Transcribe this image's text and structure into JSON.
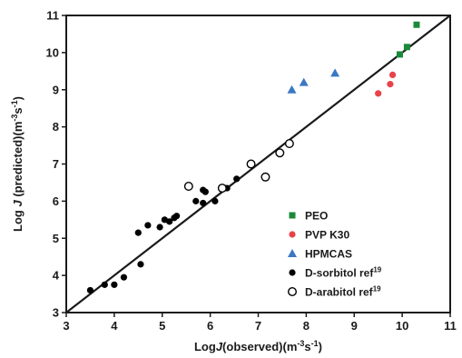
{
  "chart_data": {
    "type": "scatter",
    "xlim": [
      3,
      11
    ],
    "ylim": [
      3,
      11
    ],
    "x_ticks": [
      3,
      4,
      5,
      6,
      7,
      8,
      9,
      10,
      11
    ],
    "y_ticks": [
      3,
      4,
      5,
      6,
      7,
      8,
      9,
      10,
      11
    ],
    "x_tick_labels": [
      "3",
      "4",
      "5",
      "6",
      "7",
      "8",
      "9",
      "10",
      "11"
    ],
    "y_tick_labels": [
      "3",
      "4",
      "5",
      "6",
      "7",
      "8",
      "9",
      "10",
      "11"
    ],
    "xlabel": {
      "pre": "Log",
      "italic": "J",
      "post": "(observed)(m",
      "sup1": "-3",
      "mid": "s",
      "sup2": "-1",
      "end": ")"
    },
    "ylabel": {
      "pre": "Log ",
      "italic": "J",
      "post": " (predicted)(m",
      "sup1": "-3",
      "mid": "s",
      "sup2": "-1",
      "end": ")"
    },
    "grid": false,
    "legend_position": "bottom-right",
    "reference_line": {
      "x": [
        3,
        11
      ],
      "y": [
        3,
        11
      ]
    },
    "series": [
      {
        "name": "PEO",
        "marker": "square",
        "color": "#1a8a3a",
        "fill": true,
        "points": [
          [
            10.3,
            10.75
          ],
          [
            10.1,
            10.15
          ],
          [
            9.95,
            9.95
          ]
        ]
      },
      {
        "name": "PVP K30",
        "marker": "circle",
        "color": "#e8424a",
        "fill": true,
        "points": [
          [
            9.5,
            8.9
          ],
          [
            9.75,
            9.15
          ],
          [
            9.8,
            9.4
          ]
        ]
      },
      {
        "name": "HPMCAS",
        "marker": "triangle",
        "color": "#3b78c4",
        "fill": true,
        "points": [
          [
            7.7,
            9.0
          ],
          [
            7.95,
            9.2
          ],
          [
            8.6,
            9.45
          ]
        ]
      },
      {
        "name": "D-sorbitol ref",
        "name_sup": "19",
        "marker": "circle",
        "color": "#000000",
        "fill": true,
        "points": [
          [
            3.5,
            3.6
          ],
          [
            3.8,
            3.75
          ],
          [
            4.0,
            3.75
          ],
          [
            4.2,
            3.95
          ],
          [
            4.5,
            5.15
          ],
          [
            4.55,
            4.3
          ],
          [
            4.7,
            5.35
          ],
          [
            4.95,
            5.3
          ],
          [
            5.05,
            5.5
          ],
          [
            5.15,
            5.45
          ],
          [
            5.25,
            5.55
          ],
          [
            5.3,
            5.6
          ],
          [
            5.7,
            6.0
          ],
          [
            5.85,
            5.95
          ],
          [
            5.85,
            6.3
          ],
          [
            5.9,
            6.25
          ],
          [
            6.1,
            6.0
          ],
          [
            6.35,
            6.35
          ],
          [
            6.55,
            6.6
          ]
        ]
      },
      {
        "name": "D-arabitol ref",
        "name_sup": "19",
        "marker": "circle",
        "color": "#000000",
        "fill": false,
        "points": [
          [
            5.55,
            6.4
          ],
          [
            6.25,
            6.35
          ],
          [
            6.85,
            7.0
          ],
          [
            7.15,
            6.65
          ],
          [
            7.45,
            7.3
          ],
          [
            7.65,
            7.55
          ]
        ]
      }
    ]
  }
}
